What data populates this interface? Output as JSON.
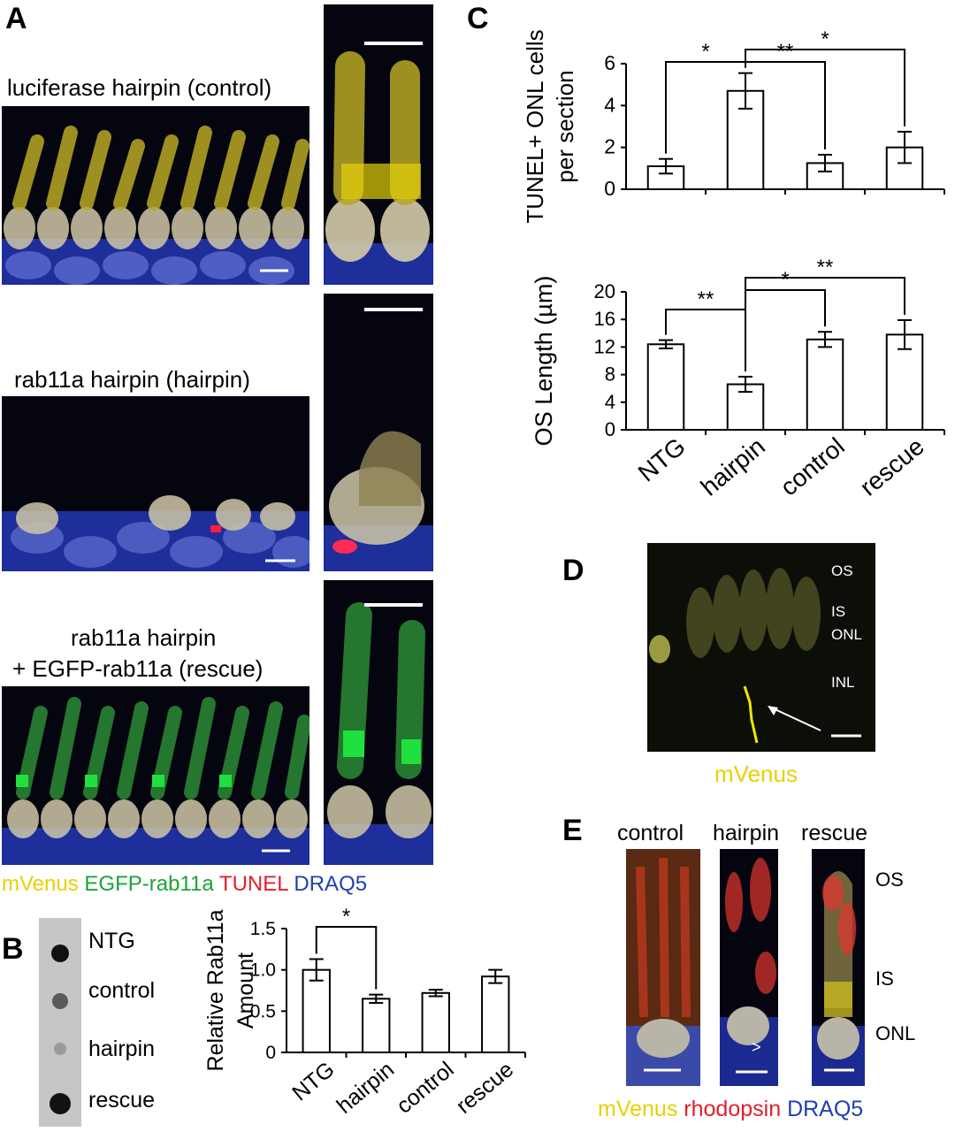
{
  "panels": {
    "A": {
      "label": "A",
      "rows": [
        {
          "caption": "luciferase hairpin (control)"
        },
        {
          "caption": "rab11a hairpin (hairpin)"
        },
        {
          "caption_line1": "rab11a hairpin",
          "caption_line2": "+ EGFP-rab11a (rescue)"
        }
      ],
      "legend": [
        "mVenus",
        "EGFP-rab11a",
        "TUNEL",
        "DRAQ5"
      ],
      "legend_colors": [
        "#e8d000",
        "#1aa33a",
        "#e0202a",
        "#2040b0"
      ]
    },
    "B": {
      "label": "B",
      "blot_labels": [
        "NTG",
        "control",
        "hairpin",
        "rescue"
      ]
    },
    "C": {
      "label": "C"
    },
    "D": {
      "label": "D",
      "layers": [
        "OS",
        "IS",
        "ONL",
        "INL"
      ],
      "caption": "mVenus"
    },
    "E": {
      "label": "E",
      "columns": [
        "control",
        "hairpin",
        "rescue"
      ],
      "layers": [
        "OS",
        "IS",
        "ONL"
      ],
      "legend": [
        "mVenus",
        "rhodopsin",
        "DRAQ5"
      ]
    }
  },
  "chart_data": [
    {
      "type": "bar",
      "panel": "B",
      "categories": [
        "NTG",
        "hairpin",
        "control",
        "rescue"
      ],
      "values": [
        1.0,
        0.65,
        0.72,
        0.92
      ],
      "errors": [
        0.13,
        0.05,
        0.04,
        0.08
      ],
      "ylabel": "Relative Rab11a Amount",
      "ylim": [
        0,
        1.5
      ],
      "yticks": [
        "0",
        "0.5",
        "1.0",
        "1.5"
      ],
      "significance": [
        {
          "from": "NTG",
          "to": "hairpin",
          "label": "*"
        }
      ]
    },
    {
      "type": "bar",
      "panel": "C-top",
      "categories": [
        "NTG",
        "hairpin",
        "control",
        "rescue"
      ],
      "values": [
        1.1,
        4.7,
        1.25,
        2.0
      ],
      "errors": [
        0.35,
        0.85,
        0.4,
        0.75
      ],
      "ylabel": "TUNEL+ ONL cells per section",
      "ylim": [
        0,
        6
      ],
      "yticks": [
        "0",
        "2",
        "4",
        "6"
      ],
      "significance": [
        {
          "from": "NTG",
          "to": "hairpin",
          "label": "*"
        },
        {
          "from": "hairpin",
          "to": "control",
          "label": "**"
        },
        {
          "from": "hairpin",
          "to": "rescue",
          "label": "*"
        }
      ]
    },
    {
      "type": "bar",
      "panel": "C-bottom",
      "categories": [
        "NTG",
        "hairpin",
        "control",
        "rescue"
      ],
      "values": [
        12.4,
        6.6,
        13.1,
        13.8
      ],
      "errors": [
        0.6,
        1.1,
        1.1,
        2.1
      ],
      "ylabel": "OS Length (µm)",
      "ylim": [
        0,
        20
      ],
      "yticks": [
        "0",
        "4",
        "8",
        "12",
        "16",
        "20"
      ],
      "significance": [
        {
          "from": "NTG",
          "to": "hairpin",
          "label": "**"
        },
        {
          "from": "hairpin",
          "to": "control",
          "label": "*"
        },
        {
          "from": "hairpin",
          "to": "rescue",
          "label": "**"
        }
      ]
    }
  ]
}
